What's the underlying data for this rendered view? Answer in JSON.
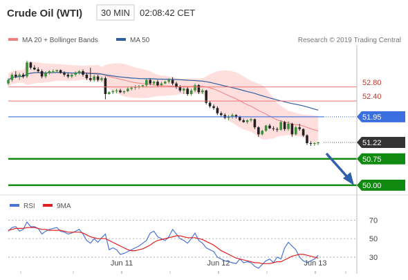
{
  "header": {
    "instrument": "Crude Oil (WTI)",
    "timeframe": "30 MIN",
    "time": "02:08:42 CET"
  },
  "legend": {
    "ma20_bb": "MA 20 + Bollinger Bands",
    "ma50": "MA 50",
    "credit": "Research © 2019 Trading Central"
  },
  "rsi_legend": {
    "rsi": "RSI",
    "ma9": "9MA"
  },
  "colors": {
    "up_candle": "#3a8f3a",
    "down_candle": "#222222",
    "ma20": "#f08080",
    "bands_fill": "#ffd8d8",
    "ma50": "#2f5f9f",
    "resistance": "#f07070",
    "pivot": "#3b6fe0",
    "support": "#118a11",
    "forecast_arrow": "#2f5fa8",
    "rsi": "#4a74d4",
    "rsi_ma9": "#e02020"
  },
  "chart_data": [
    {
      "type": "candlestick",
      "title": "Crude Oil (WTI) 30 MIN",
      "x_labels": [
        "Jun 11",
        "Jun 12",
        "Jun 13"
      ],
      "ylim": [
        49.8,
        53.9
      ],
      "ohlc": [
        [
          52.9,
          53.05,
          52.85,
          53.0
        ],
        [
          53.0,
          53.2,
          52.95,
          53.15
        ],
        [
          53.15,
          53.25,
          53.05,
          53.1
        ],
        [
          53.1,
          53.2,
          53.0,
          53.15
        ],
        [
          53.15,
          53.2,
          53.05,
          53.1
        ],
        [
          53.1,
          53.55,
          53.05,
          53.5
        ],
        [
          53.5,
          53.52,
          53.3,
          53.35
        ],
        [
          53.35,
          53.42,
          53.28,
          53.3
        ],
        [
          53.3,
          53.36,
          53.2,
          53.25
        ],
        [
          53.25,
          53.3,
          53.05,
          53.1
        ],
        [
          53.1,
          53.25,
          53.05,
          53.2
        ],
        [
          53.2,
          53.28,
          53.15,
          53.25
        ],
        [
          53.25,
          53.3,
          53.2,
          53.25
        ],
        [
          53.25,
          53.3,
          53.22,
          53.28
        ],
        [
          53.28,
          53.3,
          53.18,
          53.2
        ],
        [
          53.2,
          53.25,
          53.1,
          53.15
        ],
        [
          53.15,
          53.2,
          53.05,
          53.1
        ],
        [
          53.1,
          53.18,
          53.05,
          53.15
        ],
        [
          53.15,
          53.25,
          53.1,
          53.2
        ],
        [
          53.2,
          53.28,
          53.15,
          53.25
        ],
        [
          53.25,
          53.3,
          53.1,
          53.15
        ],
        [
          53.15,
          53.2,
          53.0,
          53.05
        ],
        [
          53.05,
          53.35,
          52.95,
          53.0
        ],
        [
          53.0,
          53.15,
          52.95,
          53.1
        ],
        [
          53.1,
          53.15,
          52.95,
          53.0
        ],
        [
          53.0,
          53.1,
          52.95,
          53.05
        ],
        [
          53.05,
          53.1,
          52.45,
          52.6
        ],
        [
          52.6,
          52.68,
          52.58,
          52.65
        ],
        [
          52.65,
          52.72,
          52.6,
          52.68
        ],
        [
          52.68,
          52.75,
          52.62,
          52.7
        ],
        [
          52.7,
          52.75,
          52.62,
          52.65
        ],
        [
          52.65,
          52.7,
          52.6,
          52.68
        ],
        [
          52.68,
          52.8,
          52.65,
          52.75
        ],
        [
          52.75,
          52.82,
          52.7,
          52.78
        ],
        [
          52.78,
          52.85,
          52.72,
          52.8
        ],
        [
          52.8,
          52.86,
          52.75,
          52.82
        ],
        [
          52.82,
          52.86,
          52.78,
          52.85
        ],
        [
          52.85,
          53.05,
          52.8,
          53.0
        ],
        [
          53.0,
          53.05,
          52.85,
          52.9
        ],
        [
          52.9,
          52.98,
          52.85,
          52.95
        ],
        [
          52.95,
          53.0,
          52.8,
          52.85
        ],
        [
          52.85,
          52.95,
          52.82,
          52.9
        ],
        [
          52.9,
          52.98,
          52.88,
          52.95
        ],
        [
          52.95,
          53.05,
          52.9,
          53.0
        ],
        [
          53.0,
          53.08,
          52.85,
          52.9
        ],
        [
          52.9,
          52.95,
          52.75,
          52.8
        ],
        [
          52.8,
          52.85,
          52.65,
          52.7
        ],
        [
          52.7,
          52.78,
          52.6,
          52.75
        ],
        [
          52.75,
          52.8,
          52.55,
          52.6
        ],
        [
          52.6,
          52.75,
          52.55,
          52.7
        ],
        [
          52.7,
          52.9,
          52.65,
          52.85
        ],
        [
          52.85,
          52.88,
          52.6,
          52.65
        ],
        [
          52.65,
          52.75,
          52.6,
          52.7
        ],
        [
          52.7,
          52.72,
          52.3,
          52.35
        ],
        [
          52.35,
          52.4,
          52.2,
          52.25
        ],
        [
          52.25,
          52.3,
          52.15,
          52.2
        ],
        [
          52.2,
          52.25,
          52.0,
          52.05
        ],
        [
          52.05,
          52.1,
          51.95,
          52.0
        ],
        [
          52.0,
          52.05,
          51.88,
          51.92
        ],
        [
          51.92,
          52.0,
          51.85,
          51.95
        ],
        [
          51.95,
          52.05,
          51.9,
          52.0
        ],
        [
          52.0,
          52.02,
          51.9,
          51.95
        ],
        [
          51.95,
          51.98,
          51.82,
          51.85
        ],
        [
          51.85,
          51.9,
          51.78,
          51.8
        ],
        [
          51.8,
          51.88,
          51.75,
          51.85
        ],
        [
          51.85,
          51.92,
          51.8,
          51.88
        ],
        [
          51.88,
          51.9,
          51.6,
          51.65
        ],
        [
          51.65,
          51.68,
          51.38,
          51.45
        ],
        [
          51.45,
          51.58,
          51.42,
          51.55
        ],
        [
          51.55,
          51.72,
          51.52,
          51.7
        ],
        [
          51.7,
          51.75,
          51.6,
          51.62
        ],
        [
          51.62,
          51.68,
          51.55,
          51.6
        ],
        [
          51.6,
          51.65,
          51.52,
          51.58
        ],
        [
          51.58,
          51.85,
          51.55,
          51.8
        ],
        [
          51.8,
          51.83,
          51.55,
          51.6
        ],
        [
          51.6,
          51.82,
          51.55,
          51.75
        ],
        [
          51.75,
          51.78,
          51.38,
          51.45
        ],
        [
          51.45,
          51.7,
          51.42,
          51.65
        ],
        [
          51.65,
          51.75,
          51.55,
          51.6
        ],
        [
          51.6,
          51.62,
          51.38,
          51.42
        ],
        [
          51.42,
          51.45,
          51.15,
          51.2
        ],
        [
          51.2,
          51.25,
          51.12,
          51.18
        ],
        [
          51.18,
          51.22,
          51.12,
          51.2
        ],
        [
          51.2,
          51.24,
          51.15,
          51.22
        ]
      ]
    },
    {
      "type": "line",
      "title": "RSI",
      "x_labels": [
        "Jun 11",
        "Jun 12",
        "Jun 13"
      ],
      "ylim": [
        15,
        80
      ],
      "yticks": [
        "70",
        "50",
        "30"
      ],
      "series": [
        {
          "name": "RSI",
          "values": [
            58,
            62,
            63,
            58,
            60,
            68,
            63,
            63,
            61,
            55,
            58,
            60,
            61,
            62,
            58,
            57,
            55,
            56,
            58,
            60,
            55,
            48,
            45,
            50,
            46,
            51,
            55,
            38,
            40,
            38,
            33,
            34,
            36,
            38,
            40,
            42,
            45,
            48,
            56,
            58,
            52,
            50,
            48,
            52,
            60,
            55,
            50,
            48,
            45,
            50,
            56,
            48,
            45,
            40,
            38,
            36,
            30,
            28,
            26,
            25,
            24,
            23,
            28,
            24,
            25,
            24,
            20,
            18,
            22,
            26,
            28,
            24,
            30,
            28,
            40,
            46,
            42,
            38,
            30,
            26,
            24,
            26,
            28,
            32
          ]
        },
        {
          "name": "9MA",
          "values": [
            59,
            60,
            61,
            61,
            61,
            62,
            62,
            62,
            61,
            60,
            60,
            59,
            59,
            59,
            59,
            58,
            57,
            57,
            57,
            57,
            56,
            54,
            52,
            51,
            50,
            50,
            50,
            48,
            46,
            44,
            42,
            40,
            38,
            37,
            37,
            38,
            39,
            41,
            43,
            46,
            48,
            49,
            50,
            51,
            52,
            53,
            53,
            52,
            51,
            51,
            51,
            50,
            49,
            47,
            45,
            43,
            40,
            37,
            35,
            33,
            31,
            29,
            28,
            27,
            26,
            25,
            24,
            24,
            23,
            23,
            23,
            24,
            25,
            25,
            27,
            29,
            31,
            32,
            33,
            33,
            32,
            31,
            30,
            29
          ]
        }
      ]
    }
  ],
  "levels": [
    {
      "label": "52.80",
      "value": 52.8,
      "kind": "resistance"
    },
    {
      "label": "52.40",
      "value": 52.4,
      "kind": "resistance"
    },
    {
      "label": "51.95",
      "value": 51.95,
      "kind": "pivot"
    },
    {
      "label": "51.22",
      "value": 51.22,
      "kind": "last"
    },
    {
      "label": "50.75",
      "value": 50.75,
      "kind": "support"
    },
    {
      "label": "50.00",
      "value": 50.0,
      "kind": "support"
    }
  ]
}
